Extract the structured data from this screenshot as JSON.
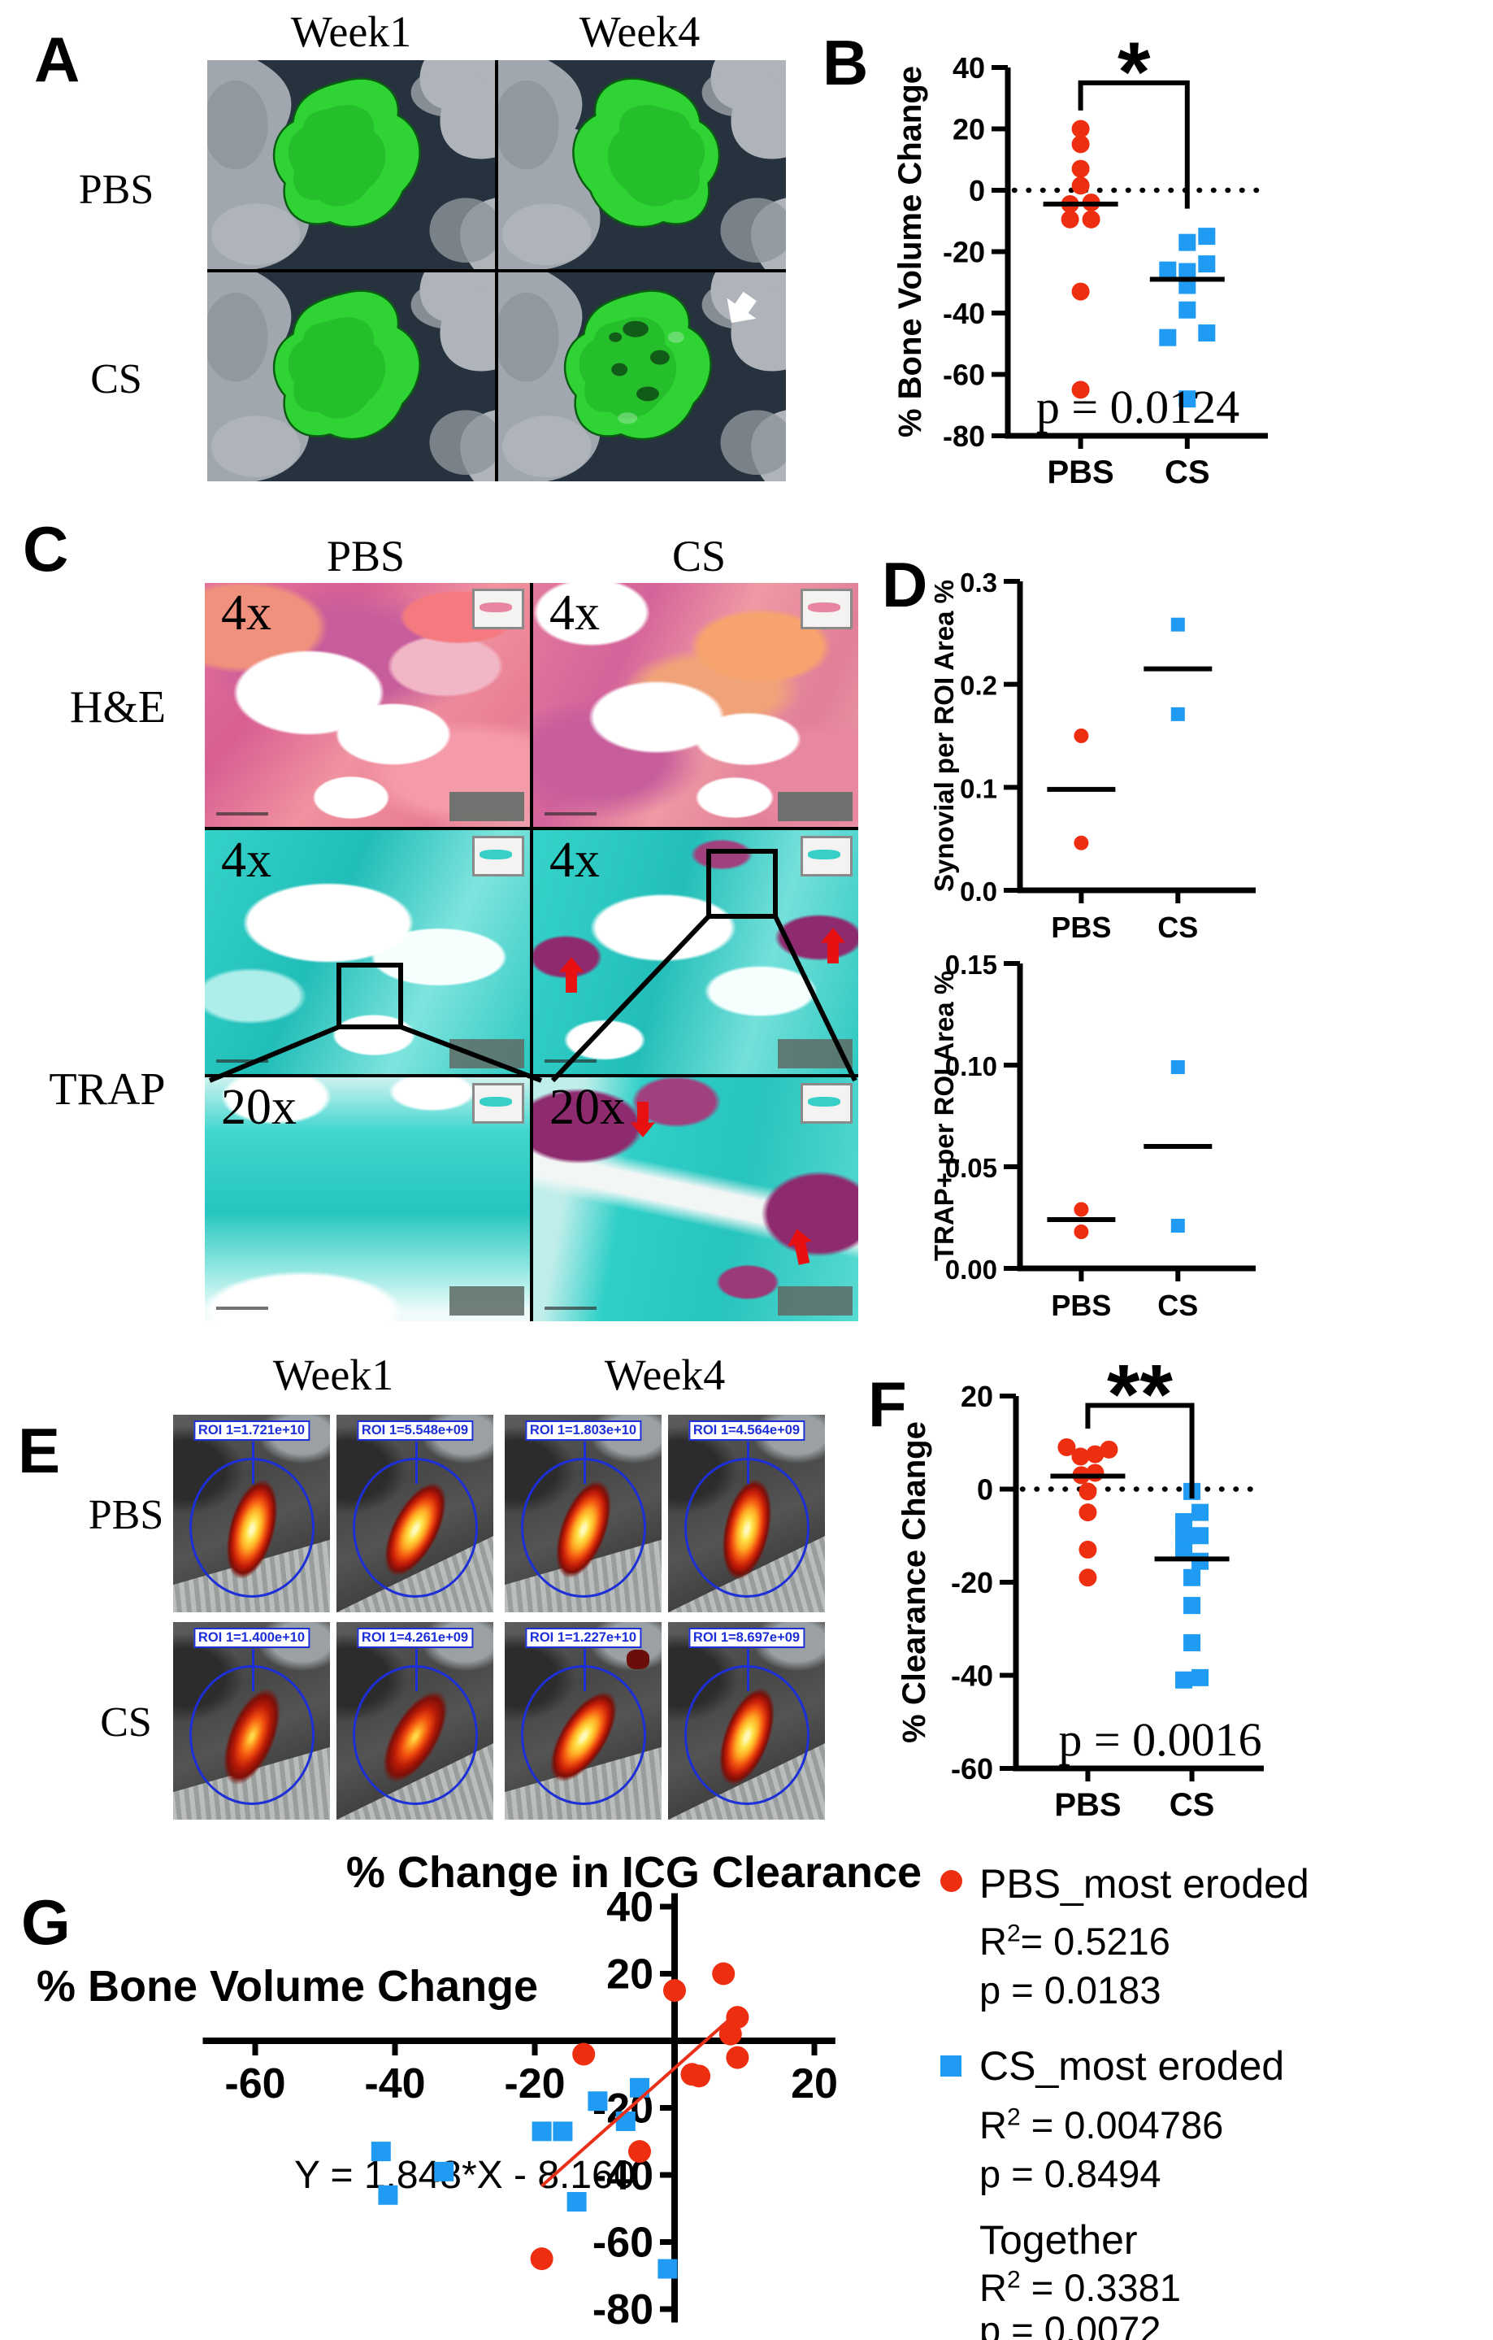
{
  "colors": {
    "pbs_red": "#ee2e10",
    "cs_blue": "#1f9bf3",
    "regression_red": "#e8301a",
    "roi_blue": "#1d2fd6",
    "microct_green": "#2fd334",
    "trap_teal": "#2ecfc8",
    "trap_purple": "#8e2a6e"
  },
  "panelA": {
    "label": "A",
    "col_headers": [
      "Week1",
      "Week4"
    ],
    "row_labels": [
      "PBS",
      "CS"
    ]
  },
  "panelB": {
    "label": "B"
  },
  "panelC": {
    "label": "C",
    "col_headers": [
      "PBS",
      "CS"
    ],
    "row_labels": [
      "H&E",
      "TRAP"
    ],
    "mags": {
      "he": [
        "4x",
        "4x"
      ],
      "trap4": [
        "4x",
        "4x"
      ],
      "trap20": [
        "20x",
        "20x"
      ]
    }
  },
  "panelD": {
    "label": "D"
  },
  "panelE": {
    "label": "E",
    "col_headers": [
      "Week1",
      "Week4"
    ],
    "row_labels": [
      "PBS",
      "CS"
    ],
    "rois": [
      [
        "ROI 1=1.721e+10",
        "ROI 1=5.548e+09",
        "ROI 1=1.803e+10",
        "ROI 1=4.564e+09"
      ],
      [
        "ROI 1=1.400e+10",
        "ROI 1=4.261e+09",
        "ROI 1=1.227e+10",
        "ROI 1=8.697e+09"
      ]
    ]
  },
  "panelF": {
    "label": "F"
  },
  "panelG": {
    "label": "G",
    "title": "% Change in ICG Clearance",
    "xlabel": "% Bone Volume Change",
    "equation": "Y = 1.848*X - 8.160",
    "legend": [
      {
        "name": "PBS_most eroded",
        "marker": "circle",
        "color": "#ee2e10",
        "r2": "= 0.5216",
        "p": "p = 0.0183"
      },
      {
        "name": "CS_most eroded",
        "marker": "square",
        "color": "#1f9bf3",
        "r2": " = 0.004786",
        "p": "p = 0.8494"
      },
      {
        "name": "Together",
        "marker": "none",
        "color": "",
        "r2": " = 0.3381",
        "p": "p = 0.0072"
      }
    ]
  },
  "chart_data": [
    {
      "id": "B",
      "type": "dot",
      "ylabel": "% Bone Volume Change",
      "ylim": [
        -80,
        40
      ],
      "yticks": [
        40,
        20,
        0,
        -20,
        -40,
        -60,
        -80
      ],
      "ytick_labels": [
        "40",
        "20",
        "0",
        "-20",
        "-40",
        "-60",
        "-80"
      ],
      "zero_dotted": true,
      "categories": [
        "PBS",
        "CS"
      ],
      "significance": "*",
      "p_text": "p = 0.0124",
      "bracket": {
        "top": 35,
        "left_lo": 26,
        "right_lo": -6,
        "label": "*"
      },
      "series": [
        {
          "name": "PBS",
          "color": "#ee2e10",
          "marker": "circle",
          "median": -4.5,
          "points": [
            {
              "y": 20,
              "dx": 0
            },
            {
              "y": 15,
              "dx": 0
            },
            {
              "y": 7,
              "dx": 0
            },
            {
              "y": 1.5,
              "dx": 0
            },
            {
              "y": -4.5,
              "dx": -13
            },
            {
              "y": -4,
              "dx": 13
            },
            {
              "y": -9.5,
              "dx": -13
            },
            {
              "y": -9.5,
              "dx": 13
            },
            {
              "y": -33,
              "dx": 0
            },
            {
              "y": -65,
              "dx": 0
            }
          ]
        },
        {
          "name": "CS",
          "color": "#1f9bf3",
          "marker": "square",
          "median": -29,
          "points": [
            {
              "y": -15,
              "dx": 24
            },
            {
              "y": -17,
              "dx": 0
            },
            {
              "y": -24,
              "dx": 24
            },
            {
              "y": -26,
              "dx": -24
            },
            {
              "y": -26.5,
              "dx": 0
            },
            {
              "y": -31,
              "dx": 0
            },
            {
              "y": -39,
              "dx": 0
            },
            {
              "y": -46.5,
              "dx": 24
            },
            {
              "y": -48,
              "dx": -24
            },
            {
              "y": -68,
              "dx": 0
            }
          ]
        }
      ]
    },
    {
      "id": "D1",
      "type": "dot",
      "ylabel": "Synovial per ROI Area %",
      "ylim": [
        0,
        0.3
      ],
      "yticks": [
        0.3,
        0.2,
        0.1,
        0.0
      ],
      "ytick_labels": [
        "0.3",
        "0.2",
        "0.1",
        "0.0"
      ],
      "zero_dotted": false,
      "categories": [
        "PBS",
        "CS"
      ],
      "series": [
        {
          "name": "PBS",
          "color": "#ee2e10",
          "marker": "circle",
          "median": 0.098,
          "points": [
            {
              "y": 0.15,
              "dx": 0
            },
            {
              "y": 0.046,
              "dx": 0
            }
          ]
        },
        {
          "name": "CS",
          "color": "#1f9bf3",
          "marker": "square",
          "median": 0.215,
          "points": [
            {
              "y": 0.258,
              "dx": 0
            },
            {
              "y": 0.171,
              "dx": 0
            }
          ]
        }
      ]
    },
    {
      "id": "D2",
      "type": "dot",
      "ylabel": "TRAP+ per ROI Area %",
      "ylim": [
        0,
        0.15
      ],
      "yticks": [
        0.15,
        0.1,
        0.05,
        0.0
      ],
      "ytick_labels": [
        "0.15",
        "0.10",
        "0.05",
        "0.00"
      ],
      "zero_dotted": false,
      "categories": [
        "PBS",
        "CS"
      ],
      "series": [
        {
          "name": "PBS",
          "color": "#ee2e10",
          "marker": "circle",
          "median": 0.024,
          "points": [
            {
              "y": 0.029,
              "dx": 0
            },
            {
              "y": 0.018,
              "dx": 0
            }
          ]
        },
        {
          "name": "CS",
          "color": "#1f9bf3",
          "marker": "square",
          "median": 0.06,
          "points": [
            {
              "y": 0.099,
              "dx": 0
            },
            {
              "y": 0.021,
              "dx": 0
            }
          ]
        }
      ]
    },
    {
      "id": "F",
      "type": "dot",
      "ylabel": "% Clearance Change",
      "ylim": [
        -60,
        20
      ],
      "yticks": [
        20,
        0,
        -20,
        -40,
        -60
      ],
      "ytick_labels": [
        "20",
        "0",
        "-20",
        "-40",
        "-60"
      ],
      "zero_dotted": true,
      "categories": [
        "PBS",
        "CS"
      ],
      "significance": "**",
      "p_text": "p = 0.0016",
      "bracket": {
        "top": 18,
        "left_lo": 13,
        "right_lo": -2,
        "label": "**"
      },
      "series": [
        {
          "name": "PBS",
          "color": "#ee2e10",
          "marker": "circle",
          "median": 2.8,
          "points": [
            {
              "y": 9,
              "dx": -26
            },
            {
              "y": 7,
              "dx": -9
            },
            {
              "y": 7.5,
              "dx": 9
            },
            {
              "y": 8.5,
              "dx": 26
            },
            {
              "y": 3,
              "dx": -8
            },
            {
              "y": 3.5,
              "dx": 9
            },
            {
              "y": -0.5,
              "dx": 0
            },
            {
              "y": -5,
              "dx": 0
            },
            {
              "y": -13,
              "dx": 0
            },
            {
              "y": -19,
              "dx": 0
            }
          ]
        },
        {
          "name": "CS",
          "color": "#1f9bf3",
          "marker": "square",
          "median": -15,
          "points": [
            {
              "y": -0.5,
              "dx": 0
            },
            {
              "y": -5,
              "dx": 10
            },
            {
              "y": -7,
              "dx": -10
            },
            {
              "y": -10.5,
              "dx": -10
            },
            {
              "y": -10,
              "dx": 10
            },
            {
              "y": -13.5,
              "dx": -10
            },
            {
              "y": -15.5,
              "dx": 10
            },
            {
              "y": -19,
              "dx": 0
            },
            {
              "y": -25,
              "dx": 0
            },
            {
              "y": -33,
              "dx": 0
            },
            {
              "y": -41,
              "dx": -10
            },
            {
              "y": -40.5,
              "dx": 10
            }
          ]
        }
      ]
    },
    {
      "id": "G",
      "type": "scatter",
      "title": "% Change in ICG Clearance",
      "xlabel": "% Bone Volume Change",
      "xlim": [
        -67.5,
        23
      ],
      "ylim": [
        44,
        -84
      ],
      "xticks": [
        -60,
        -40,
        -20,
        20
      ],
      "yticks": [
        40,
        20,
        -20,
        -40,
        -60,
        -80
      ],
      "equation": "Y = 1.848*X - 8.160",
      "regression": {
        "slope": 1.848,
        "intercept": -8.16,
        "x_start": -19,
        "x_end": 9.5,
        "color": "#e8301a"
      },
      "series": [
        {
          "name": "PBS_most eroded",
          "color": "#ee2e10",
          "marker": "circle",
          "points": [
            [
              0,
              15
            ],
            [
              7,
              20
            ],
            [
              9,
              7
            ],
            [
              8,
              2
            ],
            [
              -13,
              -4
            ],
            [
              2.5,
              -10
            ],
            [
              3.5,
              -10.5
            ],
            [
              9,
              -5
            ],
            [
              -5,
              -33
            ],
            [
              -19,
              -65
            ]
          ]
        },
        {
          "name": "CS_most eroded",
          "color": "#1f9bf3",
          "marker": "square",
          "points": [
            [
              -5,
              -14
            ],
            [
              -11,
              -18
            ],
            [
              -7,
              -24
            ],
            [
              -19,
              -27
            ],
            [
              -16,
              -27
            ],
            [
              -42,
              -33
            ],
            [
              -33,
              -39
            ],
            [
              -41,
              -46
            ],
            [
              -14,
              -48
            ],
            [
              -1,
              -68
            ]
          ]
        }
      ]
    }
  ]
}
